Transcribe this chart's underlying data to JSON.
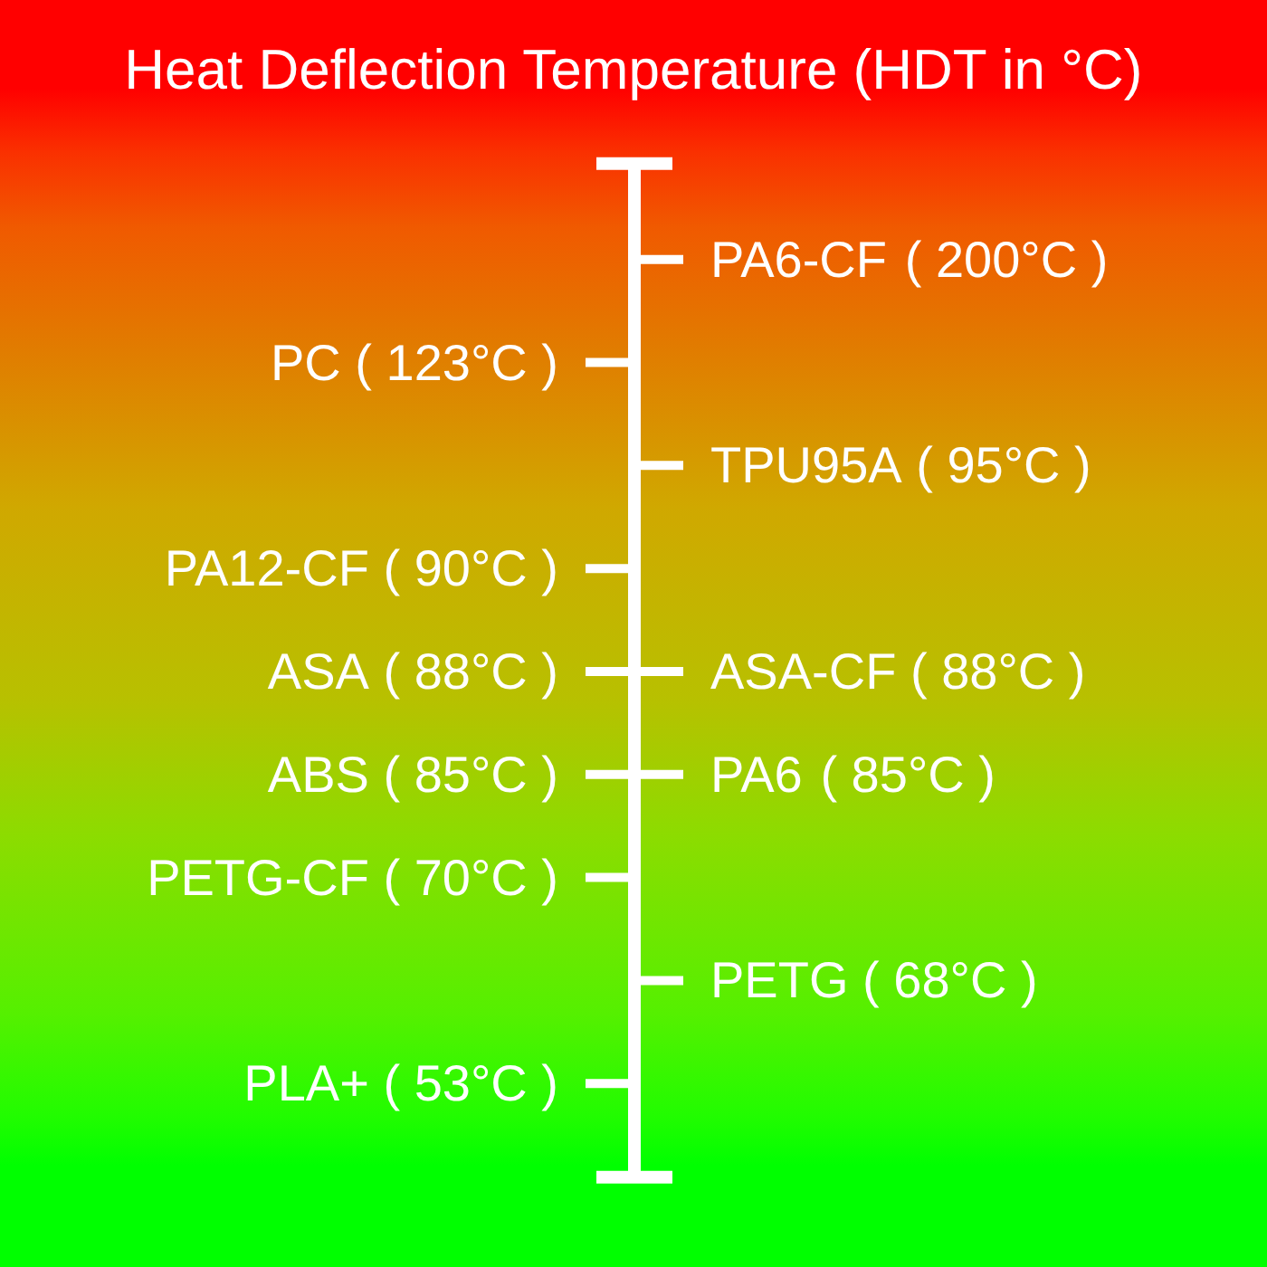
{
  "chart_data": {
    "type": "other",
    "title": "Heat Deflection Temperature (HDT in °C)",
    "categories": [
      "PA6-CF",
      "PC",
      "TPU95A",
      "PA12-CF",
      "ASA",
      "ASA-CF",
      "ABS",
      "PA6",
      "PETG-CF",
      "PETG",
      "PLA+"
    ],
    "values": [
      200,
      123,
      95,
      90,
      88,
      88,
      85,
      85,
      70,
      68,
      53
    ],
    "value_labels": [
      "( 200°C )",
      "( 123°C )",
      "( 95°C )",
      "( 90°C )",
      "( 88°C )",
      "( 88°C )",
      "( 85°C )",
      "( 85°C )",
      "( 70°C )",
      "( 68°C )",
      "( 53°C )"
    ],
    "color": "#ffffff"
  }
}
